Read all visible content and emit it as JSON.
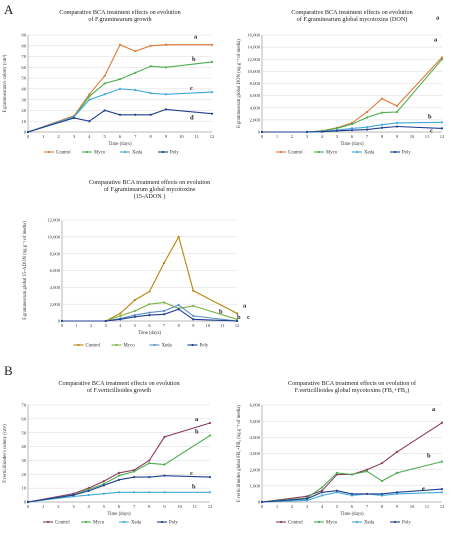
{
  "panel_labels": [
    "A",
    "B"
  ],
  "chart_data": [
    {
      "type": "line",
      "title_lines": [
        "Comparative BCA treatment effects on evolution",
        "of F.graminearum growth"
      ],
      "xlabel": "Time (days)",
      "ylabel": "F.graminearum's colony (cm²)",
      "xlim": [
        0,
        12
      ],
      "ylim": [
        0,
        90
      ],
      "xticks": [
        "0",
        "1",
        "2",
        "3",
        "4",
        "5",
        "6",
        "7",
        "8",
        "9",
        "10",
        "11",
        "12"
      ],
      "yticks": [
        "0",
        "10",
        "20",
        "30",
        "40",
        "50",
        "60",
        "70",
        "80",
        "90"
      ],
      "x": [
        0,
        3,
        4,
        5,
        6,
        7,
        8,
        9,
        12
      ],
      "series": [
        {
          "name": "Control",
          "color": "#e07b39",
          "values": [
            0,
            15,
            35,
            52,
            81,
            75,
            80,
            81,
            81
          ]
        },
        {
          "name": "Myco",
          "color": "#4bae4f",
          "values": [
            0,
            14,
            33,
            45,
            49,
            55,
            61,
            60,
            65
          ]
        },
        {
          "name": "Xeda",
          "color": "#3fa9d8",
          "values": [
            0,
            14,
            30,
            35,
            40,
            39,
            36,
            35,
            37
          ]
        },
        {
          "name": "Poly",
          "color": "#1f3f8f",
          "values": [
            0,
            13,
            10,
            20,
            16,
            16,
            16,
            21,
            17
          ]
        }
      ],
      "annotations": [
        "a",
        "b",
        "c",
        "d"
      ],
      "legend": "bottom"
    },
    {
      "type": "line",
      "title_lines": [
        "Comparative BCA treatment effects on evolution",
        "of F.graminearum global mycotoxins (DON)"
      ],
      "xlabel": "Time (days)",
      "ylabel": "F.graminearum global DON (ng.g⁻¹ of media)",
      "xlim": [
        0,
        12
      ],
      "ylim": [
        0,
        16000
      ],
      "xticks": [
        "0",
        "1",
        "2",
        "3",
        "4",
        "5",
        "6",
        "7",
        "8",
        "9",
        "10",
        "11",
        "12"
      ],
      "yticks": [
        "0",
        "2,000",
        "4,000",
        "6,000",
        "8,000",
        "10,000",
        "12,000",
        "14,000",
        "16,000"
      ],
      "x": [
        0,
        3,
        4,
        5,
        6,
        7,
        8,
        9,
        12
      ],
      "series": [
        {
          "name": "Control",
          "color": "#e07b39",
          "values": [
            0,
            0,
            200,
            700,
            1500,
            3300,
            5500,
            4300,
            12300
          ]
        },
        {
          "name": "Myco",
          "color": "#4bae4f",
          "values": [
            0,
            0,
            150,
            600,
            1300,
            2400,
            3200,
            3300,
            12000
          ]
        },
        {
          "name": "Xeda",
          "color": "#3fa9d8",
          "values": [
            0,
            0,
            100,
            300,
            600,
            800,
            1200,
            1500,
            1600
          ]
        },
        {
          "name": "Poly",
          "color": "#1f3f8f",
          "values": [
            0,
            0,
            50,
            200,
            300,
            400,
            700,
            900,
            600
          ]
        }
      ],
      "annotations": [
        "a",
        "a",
        "b",
        "c"
      ],
      "legend": "bottom"
    },
    {
      "type": "line",
      "title_lines": [
        "Comparative BCA treatment effects on evolution",
        "of F.graminearum global mycotoxins",
        "(15-ADON )"
      ],
      "xlabel": "Time (days)",
      "ylabel": "F.graminearum global 15-ADON (ng.g⁻¹ of media)",
      "xlim": [
        0,
        12
      ],
      "ylim": [
        0,
        12000
      ],
      "xticks": [
        "0",
        "1",
        "2",
        "3",
        "4",
        "5",
        "6",
        "7",
        "8",
        "9",
        "10",
        "11",
        "12"
      ],
      "yticks": [
        "0",
        "2,000",
        "4,000",
        "6,000",
        "8,000",
        "10,000",
        "12,000"
      ],
      "x": [
        0,
        3,
        4,
        5,
        6,
        7,
        8,
        9,
        12
      ],
      "series": [
        {
          "name": "Control",
          "color": "#b8860b",
          "values": [
            0,
            0,
            900,
            2500,
            3500,
            6900,
            10000,
            3600,
            900
          ]
        },
        {
          "name": "Myco",
          "color": "#7cb342",
          "values": [
            0,
            0,
            600,
            1200,
            2000,
            2200,
            1500,
            1800,
            200
          ]
        },
        {
          "name": "Xeda",
          "color": "#5b8fc7",
          "values": [
            0,
            0,
            300,
            700,
            1000,
            1200,
            1900,
            600,
            0
          ]
        },
        {
          "name": "Poly",
          "color": "#1f3f8f",
          "values": [
            0,
            0,
            200,
            500,
            700,
            800,
            1400,
            200,
            0
          ]
        }
      ],
      "annotations": [
        "a",
        "b",
        "b",
        "c"
      ],
      "legend": "bottom"
    },
    {
      "type": "line",
      "title_lines": [
        "Comparative BCA treatment effects on evolution",
        "of F.verticillioides growth"
      ],
      "xlabel": "Time (days)",
      "ylabel": "F.verticillioides's colony (cm²)",
      "xlim": [
        0,
        12
      ],
      "ylim": [
        0,
        70
      ],
      "xticks": [
        "0",
        "1",
        "2",
        "3",
        "4",
        "5",
        "6",
        "7",
        "8",
        "9",
        "10",
        "11",
        "12"
      ],
      "yticks": [
        "0",
        "10",
        "20",
        "30",
        "40",
        "50",
        "60",
        "70"
      ],
      "x": [
        0,
        3,
        4,
        5,
        6,
        7,
        8,
        9,
        12
      ],
      "series": [
        {
          "name": "Control",
          "color": "#8b3a62",
          "values": [
            0,
            6,
            10,
            15,
            21,
            23,
            30,
            47,
            57
          ]
        },
        {
          "name": "Myco",
          "color": "#4bae4f",
          "values": [
            0,
            5,
            9,
            13,
            19,
            22,
            28,
            27,
            48
          ]
        },
        {
          "name": "Xeda",
          "color": "#3fa9d8",
          "values": [
            0,
            4,
            5,
            6,
            7,
            7,
            7,
            7,
            7
          ]
        },
        {
          "name": "Poly",
          "color": "#1f3f8f",
          "values": [
            0,
            5,
            8,
            12,
            16,
            18,
            18,
            19,
            18
          ]
        }
      ],
      "annotations": [
        "a",
        "b",
        "b",
        "c"
      ],
      "legend": "bottom"
    },
    {
      "type": "line",
      "title_lines": [
        "Comparative BCA treatment effects on evolution of",
        "F.verticillioides global mycotoxins (FB₁+FB₂)"
      ],
      "xlabel": "Time (days)",
      "ylabel": "F.verticillioides global FB₁+FB₂ (ng.g⁻¹ of media)",
      "xlim": [
        0,
        12
      ],
      "ylim": [
        0,
        6000
      ],
      "xticks": [
        "0",
        "1",
        "2",
        "3",
        "4",
        "5",
        "6",
        "7",
        "8",
        "9",
        "10",
        "11",
        "12"
      ],
      "yticks": [
        "0",
        "1,000",
        "2,000",
        "3,000",
        "4,000",
        "5,000",
        "6,000"
      ],
      "x": [
        0,
        3,
        4,
        5,
        6,
        7,
        8,
        9,
        12
      ],
      "series": [
        {
          "name": "Control",
          "color": "#8b3a62",
          "values": [
            0,
            350,
            700,
            1700,
            1700,
            2000,
            2400,
            3100,
            4900
          ]
        },
        {
          "name": "Myco",
          "color": "#4bae4f",
          "values": [
            0,
            250,
            900,
            1800,
            1700,
            1900,
            1300,
            1800,
            2500
          ]
        },
        {
          "name": "Xeda",
          "color": "#3fa9d8",
          "values": [
            0,
            100,
            400,
            600,
            400,
            500,
            400,
            500,
            600
          ]
        },
        {
          "name": "Poly",
          "color": "#1f3f8f",
          "values": [
            0,
            200,
            600,
            700,
            500,
            500,
            500,
            600,
            800
          ]
        }
      ],
      "annotations": [
        "a",
        "b",
        "c",
        "c"
      ],
      "legend": "bottom"
    }
  ]
}
